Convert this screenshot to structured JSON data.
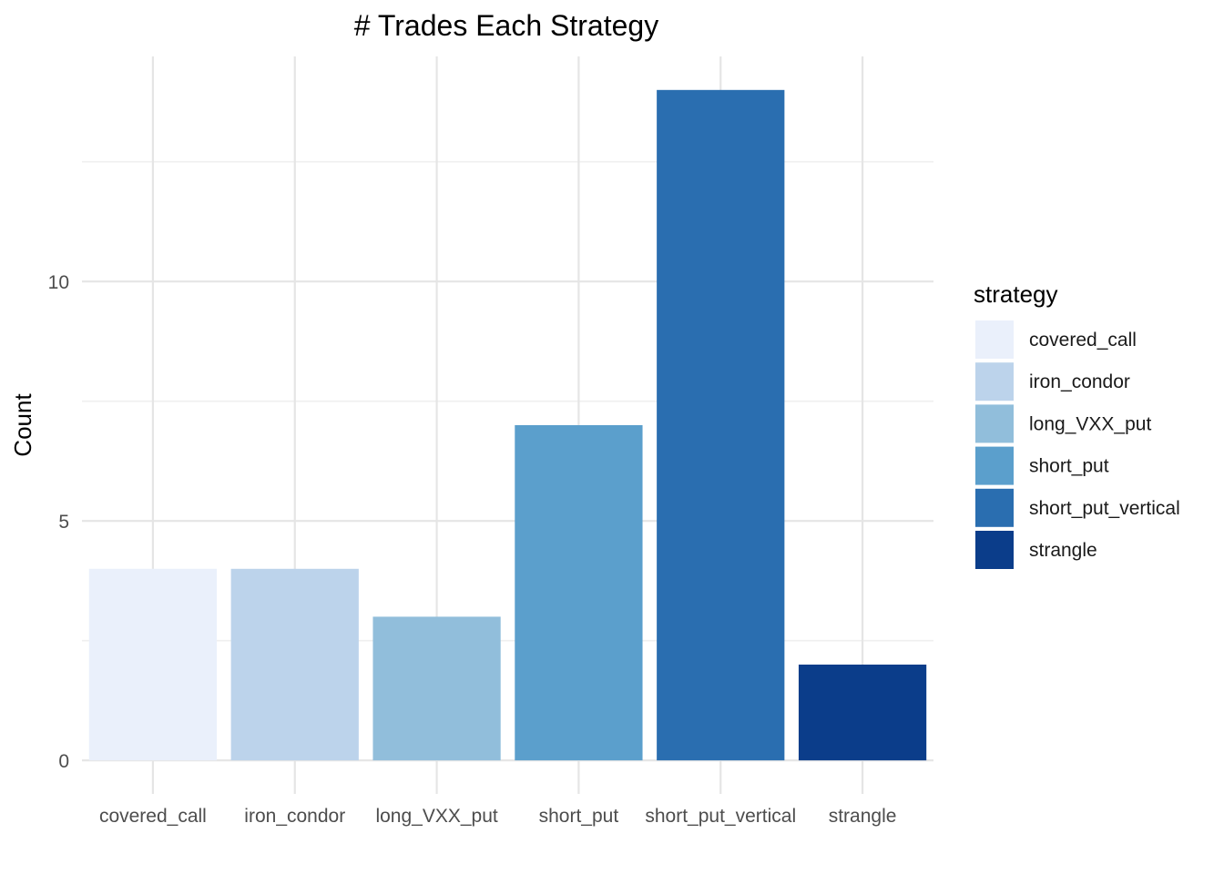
{
  "chart_data": {
    "type": "bar",
    "title": "# Trades Each Strategy",
    "xlabel": "",
    "ylabel": "Count",
    "categories": [
      "covered_call",
      "iron_condor",
      "long_VXX_put",
      "short_put",
      "short_put_vertical",
      "strangle"
    ],
    "values": [
      4,
      4,
      3,
      7,
      14,
      2
    ],
    "colors": [
      "#eaf0fb",
      "#bcd3eb",
      "#91bedb",
      "#5b9fcc",
      "#2a6eb0",
      "#0b3d8a"
    ],
    "yticks": [
      0,
      5,
      10
    ],
    "ylim": [
      -0.7,
      14.7
    ],
    "grid": true,
    "legend": {
      "title": "strategy",
      "position": "right",
      "entries": [
        "covered_call",
        "iron_condor",
        "long_VXX_put",
        "short_put",
        "short_put_vertical",
        "strangle"
      ]
    }
  }
}
